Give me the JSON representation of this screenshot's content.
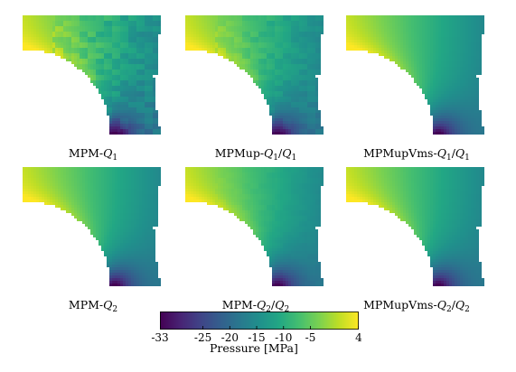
{
  "panels": [
    {
      "caption_main": "MPM-",
      "q1": "Q",
      "s1": "1",
      "slash": "",
      "q2": "",
      "s2": "",
      "noise": 1.0
    },
    {
      "caption_main": "MPMup-",
      "q1": "Q",
      "s1": "1",
      "slash": "/",
      "q2": "Q",
      "s2": "1",
      "noise": 0.6
    },
    {
      "caption_main": "MPMupVms-",
      "q1": "Q",
      "s1": "1",
      "slash": "/",
      "q2": "Q",
      "s2": "1",
      "noise": 0.0
    },
    {
      "caption_main": "MPM-",
      "q1": "Q",
      "s1": "2",
      "slash": "",
      "q2": "",
      "s2": "",
      "noise": 0.0
    },
    {
      "caption_main": "MPM-",
      "q1": "Q",
      "s1": "2",
      "slash": "/",
      "q2": "Q",
      "s2": "2",
      "noise": 0.15
    },
    {
      "caption_main": "MPMupVms-",
      "q1": "Q",
      "s1": "2",
      "slash": "/",
      "q2": "Q",
      "s2": "2",
      "noise": 0.0
    }
  ],
  "colorbar": {
    "title": "Pressure [MPa]",
    "min": -33,
    "max": 4,
    "ticks": [
      "-33",
      "-25",
      "-20",
      "-15",
      "-10",
      "-5",
      "4"
    ],
    "tick_values": [
      -33,
      -25,
      -20,
      -15,
      -10,
      -5,
      4
    ],
    "colormap": "viridis"
  }
}
